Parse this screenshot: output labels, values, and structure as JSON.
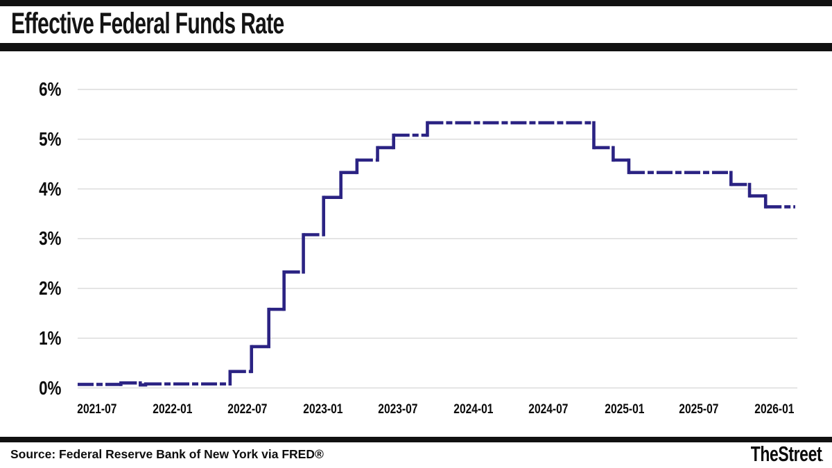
{
  "header": {
    "title": "Effective Federal Funds Rate"
  },
  "footer": {
    "source": "Source: Federal Reserve Bank of New York via FRED®",
    "brand": "TheStreet",
    "brand_suffix": "."
  },
  "chart_data": {
    "type": "line",
    "step": true,
    "title": "Effective Federal Funds Rate",
    "xlabel": "",
    "ylabel": "",
    "ylim": [
      0,
      6
    ],
    "grid": true,
    "legend": false,
    "line_color": "#2b2383",
    "grid_color": "#dcdcdc",
    "y_tick_labels": [
      "0%",
      "1%",
      "2%",
      "3%",
      "4%",
      "5%",
      "6%"
    ],
    "x_tick_labels": [
      "2021-07",
      "2022-01",
      "2022-07",
      "2023-01",
      "2023-07",
      "2024-01",
      "2024-07",
      "2025-01",
      "2025-07",
      "2026-01"
    ],
    "x_domain": [
      "2021-05-15",
      "2026-02-20"
    ],
    "series": [
      {
        "name": "Effective Federal Funds Rate (%)",
        "points": [
          [
            "2021-05-15",
            0.07
          ],
          [
            "2021-08-28",
            0.1
          ],
          [
            "2021-10-14",
            0.06
          ],
          [
            "2021-10-27",
            0.08
          ],
          [
            "2022-05-20",
            0.33
          ],
          [
            "2022-07-11",
            0.83
          ],
          [
            "2022-08-22",
            1.58
          ],
          [
            "2022-09-28",
            2.33
          ],
          [
            "2022-11-14",
            3.08
          ],
          [
            "2023-01-02",
            3.83
          ],
          [
            "2023-02-13",
            4.33
          ],
          [
            "2023-03-24",
            4.58
          ],
          [
            "2023-05-13",
            4.83
          ],
          [
            "2023-06-21",
            5.08
          ],
          [
            "2023-09-11",
            5.33
          ],
          [
            "2024-10-19",
            4.83
          ],
          [
            "2024-12-05",
            4.58
          ],
          [
            "2025-01-12",
            4.33
          ],
          [
            "2025-09-17",
            4.09
          ],
          [
            "2025-11-01",
            3.86
          ],
          [
            "2025-12-10",
            3.64
          ],
          [
            "2026-02-20",
            3.64
          ]
        ]
      }
    ]
  }
}
